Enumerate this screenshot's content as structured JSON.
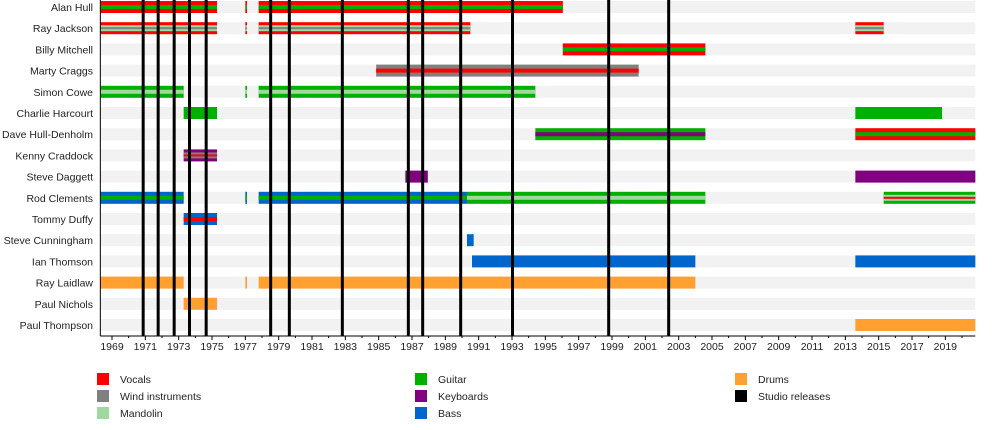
{
  "chart_data": {
    "type": "timeline",
    "title": "",
    "xlim": [
      1968.3,
      2020.8
    ],
    "x_tick_labels": [
      "1969",
      "1971",
      "1973",
      "1975",
      "1977",
      "1979",
      "1981",
      "1983",
      "1985",
      "1987",
      "1989",
      "1991",
      "1993",
      "1995",
      "1997",
      "1999",
      "2001",
      "2003",
      "2005",
      "2007",
      "2009",
      "2011",
      "2013",
      "2015",
      "2017",
      "2019"
    ],
    "roles": {
      "vocals": {
        "label": "Vocals",
        "color": "#ff0000"
      },
      "wind": {
        "label": "Wind instruments",
        "color": "#808080"
      },
      "mandolin": {
        "label": "Mandolin",
        "color": "#a0d8a0"
      },
      "guitar": {
        "label": "Guitar",
        "color": "#00b000"
      },
      "keyboards": {
        "label": "Keyboards",
        "color": "#800080"
      },
      "bass": {
        "label": "Bass",
        "color": "#0066cc"
      },
      "drums": {
        "label": "Drums",
        "color": "#ffa030"
      },
      "releases": {
        "label": "Studio releases",
        "color": "#000000"
      }
    },
    "legend_order": [
      [
        "vocals",
        "wind",
        "mandolin"
      ],
      [
        "guitar",
        "keyboards",
        "bass"
      ],
      [
        "drums",
        "releases"
      ]
    ],
    "members": [
      {
        "name": "Alan Hull",
        "periods": [
          [
            1968.3,
            1975.3,
            [
              "vocals",
              "guitar"
            ]
          ],
          [
            1977.0,
            1977.1,
            [
              "vocals",
              "guitar"
            ]
          ],
          [
            1977.8,
            1996.05,
            [
              "vocals",
              "guitar"
            ]
          ]
        ]
      },
      {
        "name": "Ray Jackson",
        "periods": [
          [
            1968.3,
            1975.3,
            [
              "vocals",
              "mandolin",
              "wind"
            ]
          ],
          [
            1977.0,
            1977.1,
            [
              "vocals",
              "mandolin",
              "wind"
            ]
          ],
          [
            1977.8,
            1990.5,
            [
              "vocals",
              "mandolin",
              "wind"
            ]
          ],
          [
            2013.6,
            2015.3,
            [
              "vocals",
              "mandolin",
              "wind"
            ]
          ]
        ]
      },
      {
        "name": "Billy Mitchell",
        "periods": [
          [
            1996.05,
            2004.6,
            [
              "vocals",
              "guitar"
            ]
          ]
        ]
      },
      {
        "name": "Marty Craggs",
        "periods": [
          [
            1984.85,
            2000.6,
            [
              "wind",
              "vocals"
            ]
          ]
        ]
      },
      {
        "name": "Simon Cowe",
        "periods": [
          [
            1968.3,
            1973.3,
            [
              "guitar",
              "mandolin"
            ]
          ],
          [
            1977.0,
            1977.1,
            [
              "guitar",
              "mandolin"
            ]
          ],
          [
            1977.8,
            1994.4,
            [
              "guitar",
              "mandolin"
            ]
          ]
        ]
      },
      {
        "name": "Charlie Harcourt",
        "periods": [
          [
            1973.3,
            1975.3,
            [
              "guitar"
            ]
          ],
          [
            2013.6,
            2018.8,
            [
              "guitar"
            ]
          ]
        ]
      },
      {
        "name": "Dave Hull-Denholm",
        "periods": [
          [
            1994.4,
            2004.6,
            [
              "guitar",
              "keyboards"
            ]
          ],
          [
            2013.6,
            2020.8,
            [
              "vocals",
              "guitar"
            ]
          ]
        ]
      },
      {
        "name": "Kenny Craddock",
        "periods": [
          [
            1973.3,
            1975.3,
            [
              "keyboards",
              "wind",
              "vocals"
            ]
          ]
        ]
      },
      {
        "name": "Steve Daggett",
        "periods": [
          [
            1986.6,
            1987.95,
            [
              "keyboards"
            ]
          ],
          [
            2013.6,
            2020.8,
            [
              "keyboards"
            ]
          ]
        ]
      },
      {
        "name": "Rod Clements",
        "periods": [
          [
            1968.3,
            1973.3,
            [
              "bass",
              "guitar"
            ]
          ],
          [
            1977.0,
            1977.1,
            [
              "bass",
              "guitar"
            ]
          ],
          [
            1977.8,
            1990.3,
            [
              "bass",
              "guitar"
            ]
          ],
          [
            1990.3,
            2004.6,
            [
              "guitar",
              "mandolin"
            ]
          ],
          [
            2015.3,
            2020.8,
            [
              "guitar",
              "mandolin",
              "vocals"
            ]
          ]
        ]
      },
      {
        "name": "Tommy Duffy",
        "periods": [
          [
            1973.3,
            1975.3,
            [
              "bass",
              "vocals"
            ]
          ]
        ]
      },
      {
        "name": "Steve Cunningham",
        "periods": [
          [
            1990.3,
            1990.7,
            [
              "bass"
            ]
          ]
        ]
      },
      {
        "name": "Ian Thomson",
        "periods": [
          [
            1990.6,
            2004.0,
            [
              "bass"
            ]
          ],
          [
            2013.6,
            2020.8,
            [
              "bass"
            ]
          ]
        ]
      },
      {
        "name": "Ray Laidlaw",
        "periods": [
          [
            1968.3,
            1973.3,
            [
              "drums"
            ]
          ],
          [
            1977.0,
            1977.1,
            [
              "drums"
            ]
          ],
          [
            1977.8,
            2004.0,
            [
              "drums"
            ]
          ]
        ]
      },
      {
        "name": "Paul Nichols",
        "periods": [
          [
            1973.3,
            1975.3,
            [
              "drums"
            ]
          ]
        ]
      },
      {
        "name": "Paul Thompson",
        "periods": [
          [
            2013.6,
            2020.8,
            [
              "drums"
            ]
          ]
        ]
      }
    ],
    "studio_releases": [
      1970.87,
      1971.77,
      1972.73,
      1973.65,
      1974.65,
      1978.52,
      1979.64,
      1982.82,
      1986.78,
      1987.64,
      1989.92,
      1993.03,
      1998.8,
      2002.4
    ]
  }
}
